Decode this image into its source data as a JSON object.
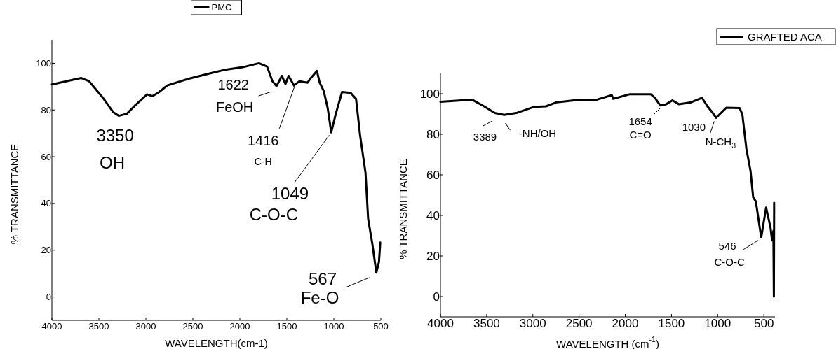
{
  "chart_data": [
    {
      "type": "line",
      "xlabel": "WAVELENGTH(cm-1)",
      "ylabel": "% TRANSMITTANCE",
      "xlim": [
        4000,
        500
      ],
      "ylim": [
        -10,
        110
      ],
      "xticks": [
        4000,
        3500,
        3000,
        2500,
        2000,
        1500,
        1000,
        500
      ],
      "yticks": [
        0,
        20,
        40,
        60,
        80,
        100
      ],
      "legend": "top",
      "grid": false,
      "series": [
        {
          "name": "PMC",
          "color": "#000000",
          "x": [
            4000,
            3690,
            3604,
            3461,
            3346,
            3289,
            3202,
            3116,
            2987,
            2930,
            2858,
            2772,
            2543,
            2313,
            2170,
            1969,
            1797,
            1711,
            1653,
            1610,
            1553,
            1515,
            1481,
            1424,
            1366,
            1280,
            1251,
            1180,
            1151,
            1108,
            1065,
            1028,
            979,
            913,
            821,
            764,
            721,
            663,
            635,
            592,
            548,
            520,
            506
          ],
          "values": [
            90.9,
            93.7,
            92.3,
            85.4,
            79.0,
            77.5,
            78.4,
            81.9,
            86.7,
            85.9,
            87.7,
            90.5,
            93.4,
            95.7,
            97.1,
            98.3,
            100,
            98.6,
            92.3,
            90.2,
            94.6,
            91.1,
            94.6,
            90.5,
            92.3,
            91.7,
            93.4,
            96.7,
            91.7,
            88.2,
            80.7,
            70.4,
            78.4,
            87.7,
            87.3,
            84.8,
            69.2,
            53.1,
            33.4,
            23.1,
            10.4,
            15.0,
            23.3
          ]
        }
      ],
      "annotations": [
        {
          "text": "3350",
          "x": 3350,
          "y": 77.5
        },
        {
          "text": "OH",
          "x": 3350,
          "y": 77.5
        },
        {
          "text": "1622",
          "x": 1622,
          "y": 90.2
        },
        {
          "text": "FeOH",
          "x": 1622,
          "y": 90.2
        },
        {
          "text": "1416",
          "x": 1416,
          "y": 91.5
        },
        "C-H",
        {
          "text": "1049",
          "x": 1049,
          "y": 70.4
        },
        "C-O-C",
        {
          "text": "567",
          "x": 567,
          "y": 10.4
        },
        {
          "text": "Fe-O",
          "x": 567,
          "y": 10.4
        }
      ]
    },
    {
      "type": "line",
      "xlabel": "WAVELENGTH (cm$^{-1}$)",
      "ylabel": "% TRANSMITTANCE",
      "xlim": [
        4000,
        380
      ],
      "ylim": [
        -10,
        110
      ],
      "xticks": [
        4000,
        3500,
        3000,
        2500,
        2000,
        1500,
        1000,
        500
      ],
      "yticks": [
        0,
        20,
        40,
        60,
        80,
        100
      ],
      "legend": "top right",
      "grid": false,
      "series": [
        {
          "name": "GRAFTED ACA",
          "color": "#000000",
          "x": [
            4000,
            3659,
            3528,
            3412,
            3310,
            3179,
            2990,
            2858,
            2742,
            2538,
            2305,
            2145,
            2131,
            1956,
            1723,
            1679,
            1621,
            1563,
            1490,
            1417,
            1286,
            1170,
            1111,
            1053,
            1018,
            907,
            762,
            733,
            689,
            645,
            616,
            587,
            529,
            476,
            427,
            412,
            397,
            392,
            389
          ],
          "values": [
            96.0,
            97.1,
            93.8,
            90.5,
            89.6,
            90.5,
            93.5,
            93.8,
            95.8,
            96.8,
            97.1,
            99.3,
            97.5,
            99.7,
            99.7,
            98.0,
            94.2,
            94.7,
            96.7,
            94.8,
            95.8,
            98.0,
            93.8,
            90.5,
            88.1,
            93.1,
            92.9,
            89.8,
            72.7,
            62.1,
            48.9,
            46.9,
            29.1,
            43.9,
            33.7,
            27.7,
            32.4,
            0,
            46.2
          ]
        }
      ],
      "annotations": [
        {
          "text": "3389",
          "x": 3389,
          "y": 89.6
        },
        {
          "text": "-NH/OH",
          "x": 3389,
          "y": 89.6
        },
        {
          "text": "1654",
          "x": 1654,
          "y": 94.5
        },
        {
          "text": "C=O",
          "x": 1654,
          "y": 94.5
        },
        {
          "text": "1030",
          "x": 1030,
          "y": 88.1
        },
        {
          "text": "N-CH$_{3}$",
          "x": 1030,
          "y": 88.1
        },
        {
          "text": "546",
          "x": 546,
          "y": 29.1
        },
        {
          "text": "C-O-C",
          "x": 546,
          "y": 29.1
        }
      ]
    }
  ]
}
